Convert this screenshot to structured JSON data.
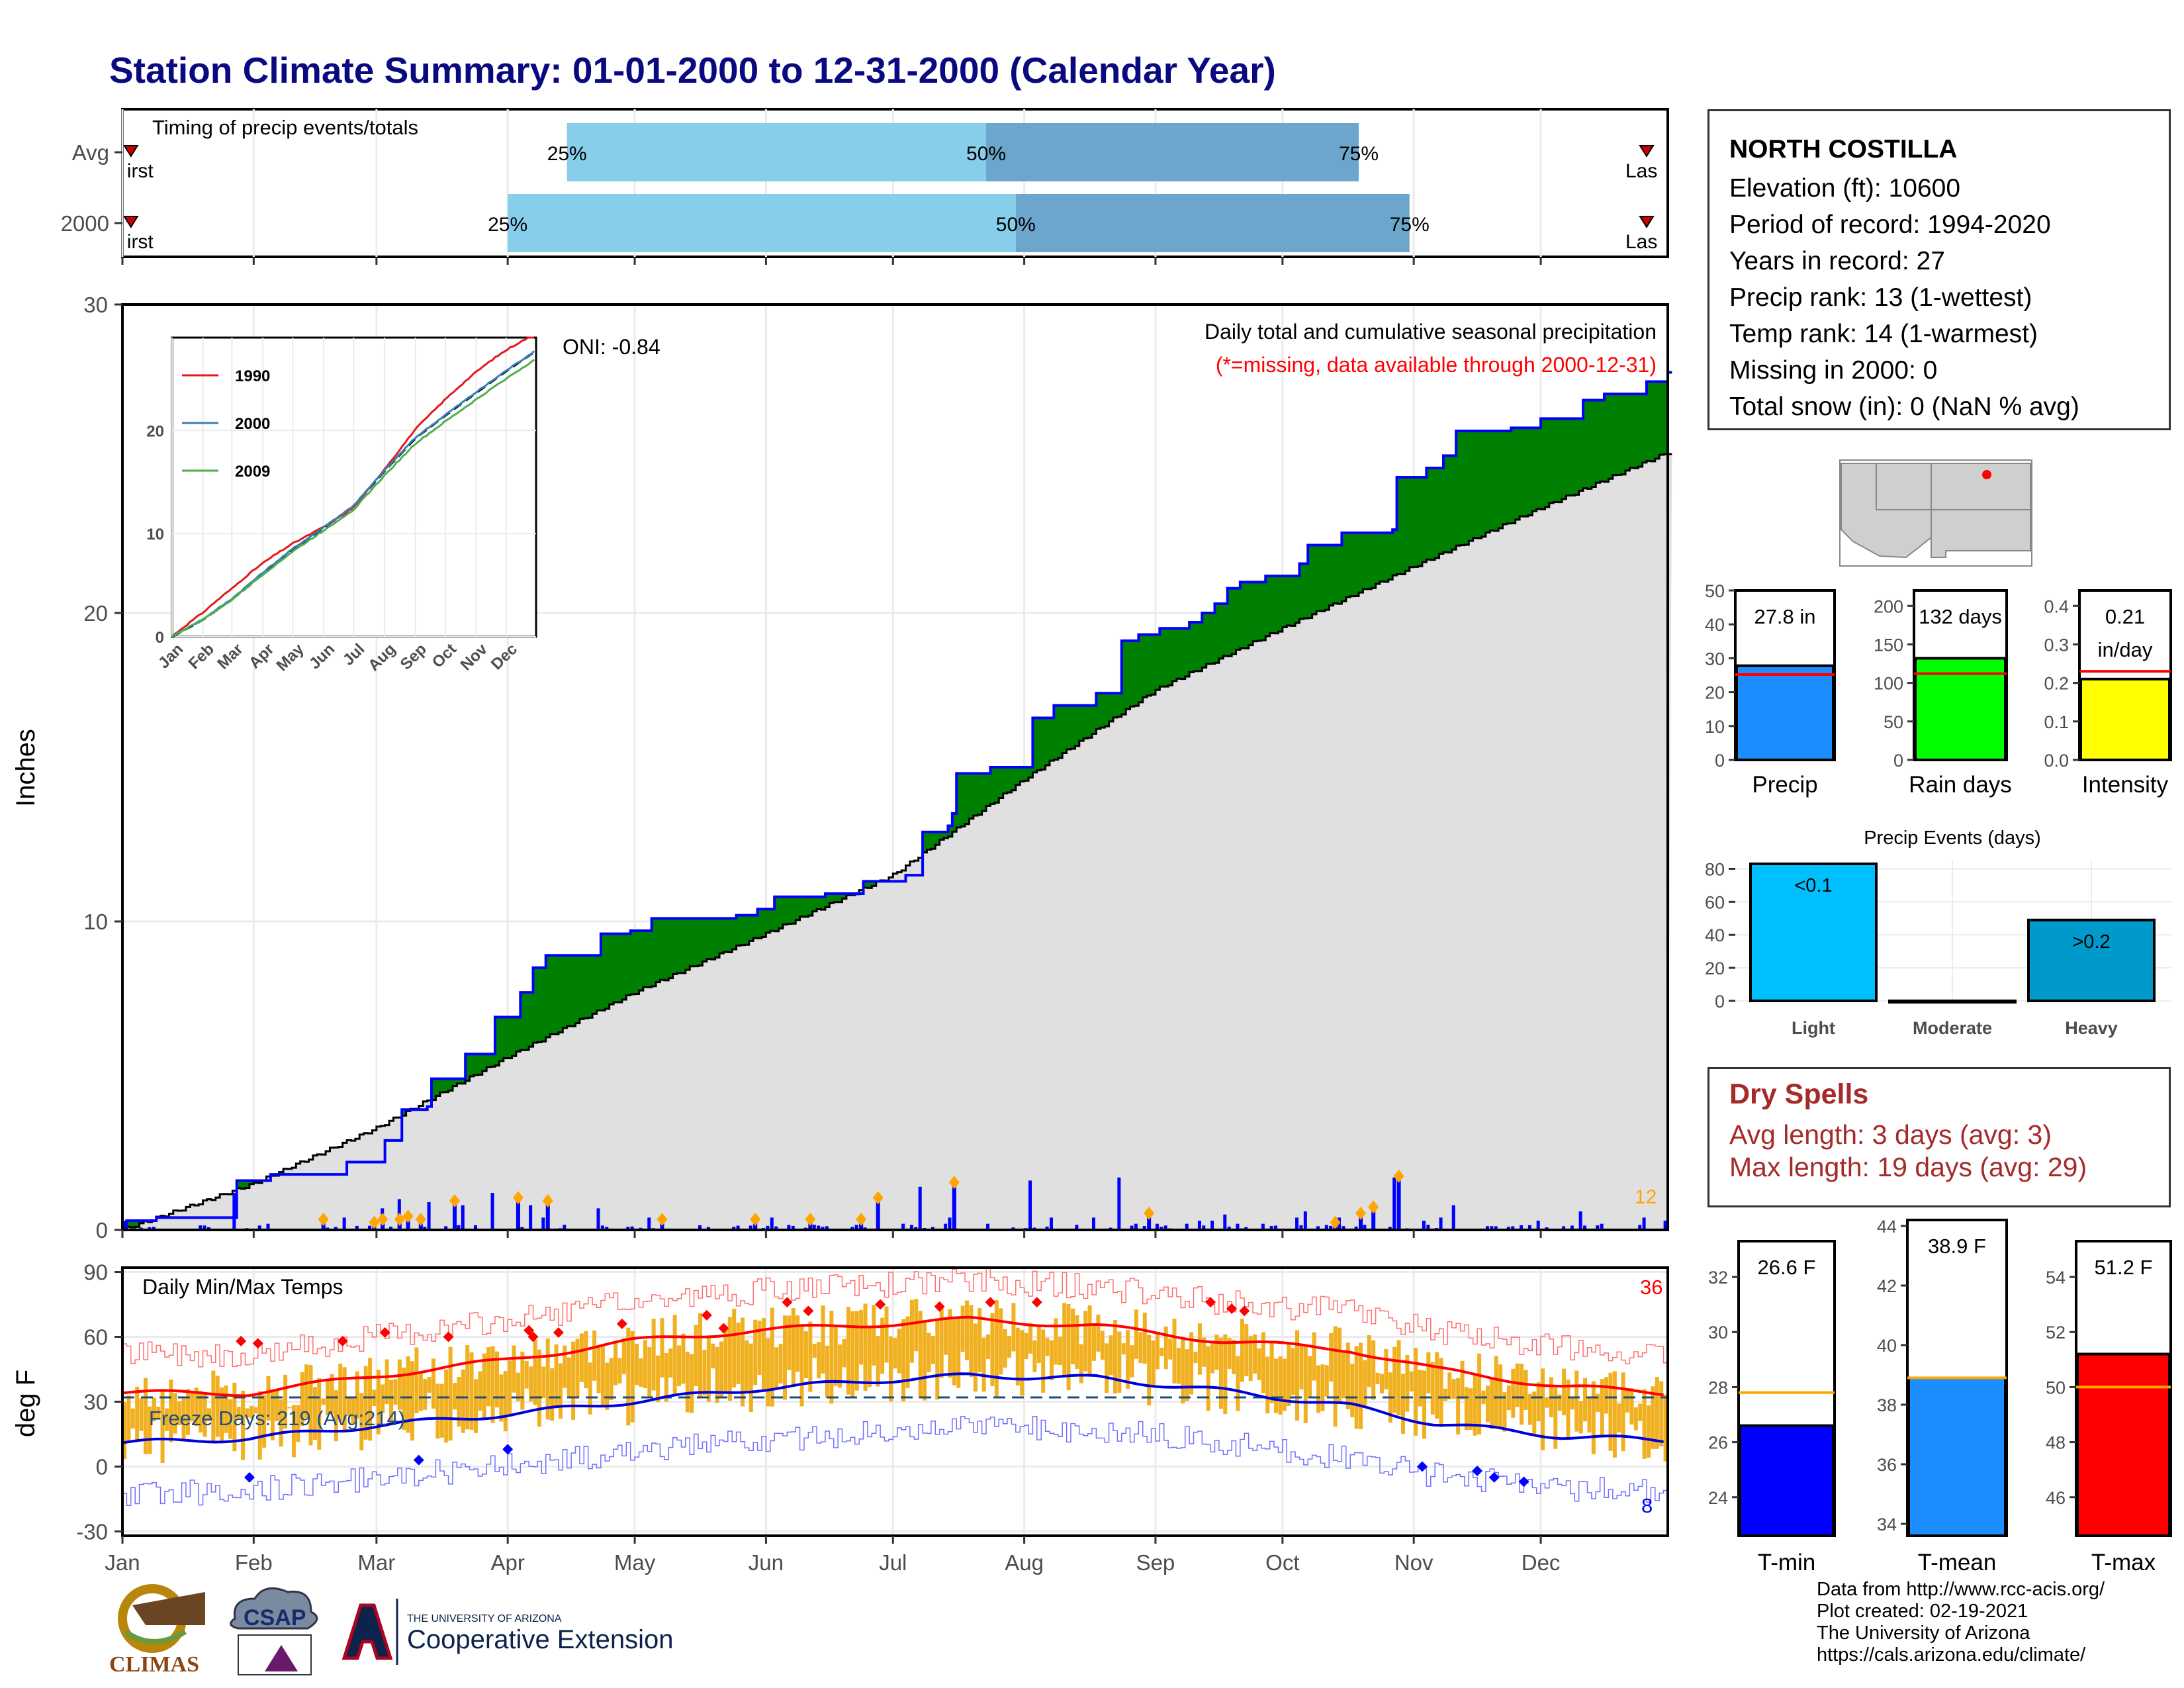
{
  "title": "Station Climate Summary: 01-01-2000 to 12-31-2000 (Calendar Year)",
  "station": {
    "name": "NORTH COSTILLA",
    "lines": [
      "Elevation (ft): 10600",
      "Period of record: 1994-2020",
      "Years in record: 27",
      "Precip rank: 13 (1-wettest)",
      "Temp rank: 14 (1-warmest)",
      "Missing in 2000: 0",
      "Total snow (in): 0 (NaN % avg)"
    ]
  },
  "dry_spells": {
    "title": "Dry Spells",
    "avg": "Avg length: 3 days (avg: 3)",
    "max": "Max length: 19 days (avg: 29)"
  },
  "credits": [
    "Data from http://www.rcc-acis.org/",
    "Plot created: 02-19-2021",
    "The University of Arizona",
    "https://cals.arizona.edu/climate/"
  ],
  "logos": {
    "climas": "CLIMAS",
    "csap": "CSAP",
    "ua_small": "THE UNIVERSITY OF ARIZONA",
    "ua_big": "Cooperative Extension"
  },
  "colors": {
    "title": "#0a0a80",
    "precip_bar": "#1c8eff",
    "rain_days_bar": "#00ff00",
    "intensity_bar": "#ffff00",
    "tmin_bar": "#0000ff",
    "tmean_bar": "#1c8eff",
    "tmax_bar": "#ff0000",
    "light_bar": "#00bfff",
    "heavy_bar": "#0099cc",
    "above_avg_fill": "#008000",
    "below_avg_fill": "#8b4513",
    "avg_fill": "#e0e0e0",
    "daily_bar": "#0000ff",
    "temp_range": "#f0b020",
    "dry_spell_text": "#a52a2a"
  },
  "chart_data": [
    {
      "id": "timing",
      "type": "bar",
      "title": "Timing of precip events/totals",
      "rows": [
        {
          "label": "Avg",
          "q25": 105,
          "q50": 204,
          "q75": 292,
          "first": "irst",
          "last": "Las"
        },
        {
          "label": "2000",
          "q25": 91,
          "q50": 211,
          "q75": 304,
          "first": "irst",
          "last": "Las"
        }
      ],
      "q_labels": [
        "25%",
        "50%",
        "75%"
      ]
    },
    {
      "id": "cumulative",
      "type": "area",
      "ylabel": "Inches",
      "ylim": [
        0,
        30
      ],
      "yticks": [
        0,
        10,
        20,
        30
      ],
      "months": [
        "Jan",
        "Feb",
        "Mar",
        "Apr",
        "May",
        "Jun",
        "Jul",
        "Aug",
        "Sep",
        "Oct",
        "Nov",
        "Dec"
      ],
      "annotation_title": "Daily total and cumulative seasonal precipitation",
      "annotation_missing": "(*=missing, data available through 2000-12-31)",
      "oni": "ONI: -0.84",
      "extreme_count": "12",
      "avg_cum": [
        [
          0,
          0
        ],
        [
          31,
          1.5
        ],
        [
          60,
          3.3
        ],
        [
          91,
          5.6
        ],
        [
          121,
          7.7
        ],
        [
          152,
          9.6
        ],
        [
          182,
          11.5
        ],
        [
          213,
          14.6
        ],
        [
          244,
          17.5
        ],
        [
          274,
          19.5
        ],
        [
          305,
          21.5
        ],
        [
          335,
          23.4
        ],
        [
          365,
          25.2
        ]
      ],
      "obs_cum": [
        [
          0,
          0
        ],
        [
          1,
          0.3
        ],
        [
          8,
          0.4
        ],
        [
          26,
          0.4
        ],
        [
          27,
          1.6
        ],
        [
          35,
          1.8
        ],
        [
          44,
          1.8
        ],
        [
          53,
          2.2
        ],
        [
          62,
          2.9
        ],
        [
          66,
          3.9
        ],
        [
          72,
          4.0
        ],
        [
          73,
          4.9
        ],
        [
          81,
          5.7
        ],
        [
          88,
          6.9
        ],
        [
          94,
          7.7
        ],
        [
          97,
          8.5
        ],
        [
          100,
          8.9
        ],
        [
          109,
          8.9
        ],
        [
          113,
          9.6
        ],
        [
          120,
          9.7
        ],
        [
          125,
          10.1
        ],
        [
          145,
          10.2
        ],
        [
          150,
          10.4
        ],
        [
          154,
          10.8
        ],
        [
          166,
          10.9
        ],
        [
          175,
          11.3
        ],
        [
          185,
          11.5
        ],
        [
          189,
          12.9
        ],
        [
          195,
          13.1
        ],
        [
          196,
          13.5
        ],
        [
          197,
          14.8
        ],
        [
          205,
          15.0
        ],
        [
          214,
          15.0
        ],
        [
          215,
          16.6
        ],
        [
          220,
          17.0
        ],
        [
          230,
          17.4
        ],
        [
          236,
          19.1
        ],
        [
          240,
          19.3
        ],
        [
          245,
          19.5
        ],
        [
          252,
          19.7
        ],
        [
          255,
          20.0
        ],
        [
          258,
          20.3
        ],
        [
          261,
          20.8
        ],
        [
          264,
          21.0
        ],
        [
          270,
          21.2
        ],
        [
          278,
          21.6
        ],
        [
          280,
          22.2
        ],
        [
          288,
          22.6
        ],
        [
          300,
          22.7
        ],
        [
          301,
          24.4
        ],
        [
          308,
          24.7
        ],
        [
          312,
          25.1
        ],
        [
          315,
          25.9
        ],
        [
          328,
          26.0
        ],
        [
          335,
          26.3
        ],
        [
          345,
          26.9
        ],
        [
          350,
          27.1
        ],
        [
          360,
          27.5
        ],
        [
          365,
          27.8
        ]
      ],
      "daily_extremes": [
        [
          47,
          0.3
        ],
        [
          59,
          0.2
        ],
        [
          61,
          0.3
        ],
        [
          65,
          0.3
        ],
        [
          67,
          0.4
        ],
        [
          70,
          0.3
        ],
        [
          78,
          0.9
        ],
        [
          93,
          1.0
        ],
        [
          100,
          0.9
        ],
        [
          127,
          0.3
        ],
        [
          149,
          0.3
        ],
        [
          162,
          0.3
        ],
        [
          174,
          0.3
        ],
        [
          178,
          1.0
        ],
        [
          196,
          1.5
        ],
        [
          242,
          0.5
        ],
        [
          286,
          0.2
        ],
        [
          292,
          0.5
        ],
        [
          295,
          0.7
        ],
        [
          301,
          1.7
        ]
      ],
      "inset": {
        "legend": [
          "1990",
          "2000",
          "2009"
        ],
        "colors": [
          "#e31a1c",
          "#377eb8",
          "#4daf4a"
        ],
        "yticks": [
          0,
          10,
          20
        ],
        "ylim": [
          0,
          29
        ],
        "months": [
          "Jan",
          "Feb",
          "Mar",
          "Apr",
          "May",
          "Jun",
          "Jul",
          "Aug",
          "Sep",
          "Oct",
          "Nov",
          "Dec"
        ]
      }
    },
    {
      "id": "temps",
      "type": "line",
      "title": "Daily Min/Max Temps",
      "ylabel": "deg F",
      "ylim": [
        -32,
        92
      ],
      "yticks": [
        -30,
        0,
        30,
        60,
        90
      ],
      "freeze_label": "Freeze Days: 219 (Avg:214)",
      "hot_count": "36",
      "cold_count": "8",
      "avg_max": [
        [
          0,
          34
        ],
        [
          30,
          34
        ],
        [
          60,
          42
        ],
        [
          90,
          49
        ],
        [
          120,
          58
        ],
        [
          150,
          63
        ],
        [
          180,
          66
        ],
        [
          200,
          68
        ],
        [
          230,
          65
        ],
        [
          260,
          58
        ],
        [
          290,
          54
        ],
        [
          310,
          45
        ],
        [
          340,
          37
        ],
        [
          365,
          34
        ]
      ],
      "avg_min": [
        [
          0,
          11
        ],
        [
          30,
          13
        ],
        [
          60,
          19
        ],
        [
          90,
          24
        ],
        [
          120,
          30
        ],
        [
          150,
          36
        ],
        [
          180,
          40
        ],
        [
          200,
          42
        ],
        [
          230,
          41
        ],
        [
          260,
          35
        ],
        [
          290,
          28
        ],
        [
          310,
          20
        ],
        [
          340,
          14
        ],
        [
          365,
          12
        ]
      ]
    },
    {
      "id": "precip_summary",
      "type": "bar",
      "panels": [
        {
          "label": "Precip",
          "value": 27.8,
          "avg": 25.2,
          "ylim": [
            0,
            50
          ],
          "yticks": [
            0,
            10,
            20,
            30,
            40,
            50
          ],
          "text": "27.8 in"
        },
        {
          "label": "Rain days",
          "value": 132,
          "avg": 112,
          "ylim": [
            0,
            220
          ],
          "yticks": [
            0,
            50,
            100,
            150,
            200
          ],
          "text": "132 days"
        },
        {
          "label": "Intensity",
          "value": 0.21,
          "avg": 0.23,
          "ylim": [
            0,
            0.44
          ],
          "yticks": [
            0.0,
            0.1,
            0.2,
            0.3,
            0.4
          ],
          "text": "0.21",
          "text2": "in/day"
        }
      ]
    },
    {
      "id": "precip_events",
      "type": "bar",
      "title": "Precip Events (days)",
      "categories": [
        "Light",
        "Moderate",
        "Heavy"
      ],
      "values": [
        83,
        0,
        49
      ],
      "bar_labels": [
        "<0.1",
        "",
        ">0.2"
      ],
      "ylim": [
        0,
        85
      ],
      "yticks": [
        0,
        20,
        40,
        60,
        80
      ]
    },
    {
      "id": "temp_summary",
      "type": "bar",
      "panels": [
        {
          "label": "T-min",
          "value": 26.6,
          "avg": 27.8,
          "ylim": [
            22.6,
            33.3
          ],
          "yticks": [
            24,
            26,
            28,
            30,
            32
          ],
          "text": "26.6 F"
        },
        {
          "label": "T-mean",
          "value": 38.9,
          "avg": 38.9,
          "ylim": [
            33.6,
            44.2
          ],
          "yticks": [
            34,
            36,
            38,
            40,
            42,
            44
          ],
          "text": "38.9 F"
        },
        {
          "label": "T-max",
          "value": 51.2,
          "avg": 50.0,
          "ylim": [
            44.6,
            55.3
          ],
          "yticks": [
            46,
            48,
            50,
            52,
            54
          ],
          "text": "51.2 F"
        }
      ]
    }
  ]
}
